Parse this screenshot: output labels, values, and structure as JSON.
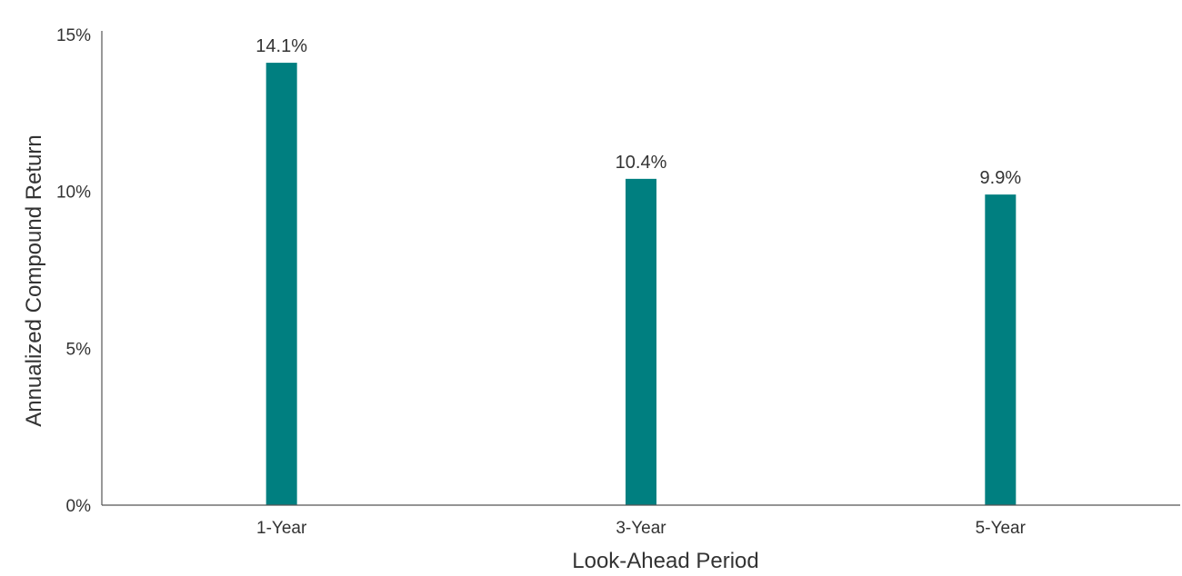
{
  "chart_data": {
    "type": "bar",
    "categories": [
      "1-Year",
      "3-Year",
      "5-Year"
    ],
    "values": [
      14.1,
      10.4,
      9.9
    ],
    "data_labels": [
      "14.1%",
      "10.4%",
      "9.9%"
    ],
    "xlabel": "Look-Ahead Period",
    "ylabel": "Annualized Compound Return",
    "ylim": [
      0,
      15
    ],
    "yticks": [
      0,
      5,
      10,
      15
    ],
    "ytick_labels": [
      "0%",
      "5%",
      "10%",
      "15%"
    ],
    "grid": false,
    "legend": "none",
    "bar_color": "#007f80"
  }
}
